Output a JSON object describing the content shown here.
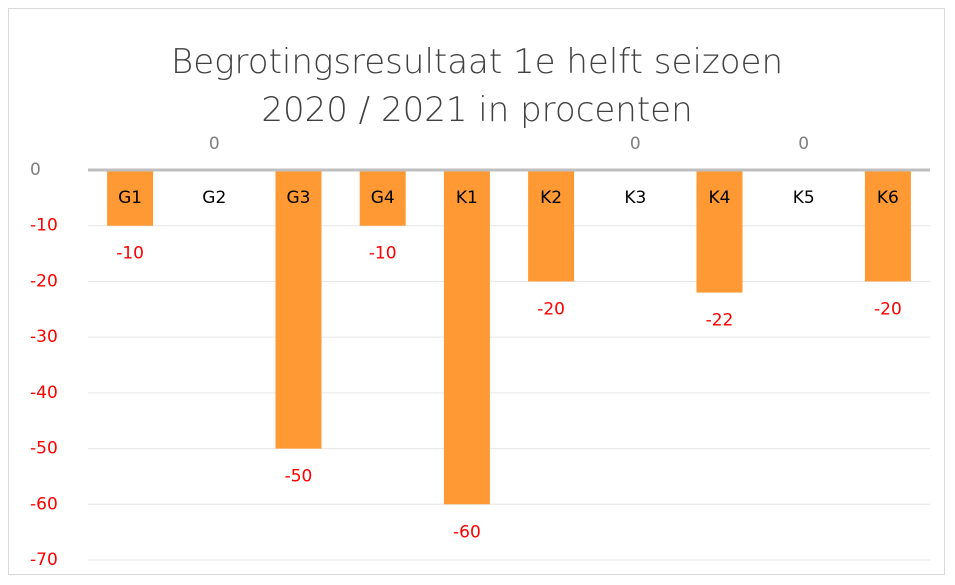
{
  "chart_data": {
    "type": "bar",
    "title": "Begrotingsresultaat 1e helft seizoen 2020 / 2021 in procenten",
    "categories": [
      "G1",
      "G2",
      "G3",
      "G4",
      "K1",
      "K2",
      "K3",
      "K4",
      "K5",
      "K6"
    ],
    "values": [
      -10,
      0,
      -50,
      -10,
      -60,
      -20,
      0,
      -22,
      0,
      -20
    ],
    "color": "#ff9933",
    "negative_label_color": "#ff0000",
    "zero_label_color": "#7f7f7f",
    "ylim": [
      -70,
      0
    ],
    "yticks": [
      0,
      -10,
      -20,
      -30,
      -40,
      -50,
      -60,
      -70
    ],
    "grid": true
  }
}
